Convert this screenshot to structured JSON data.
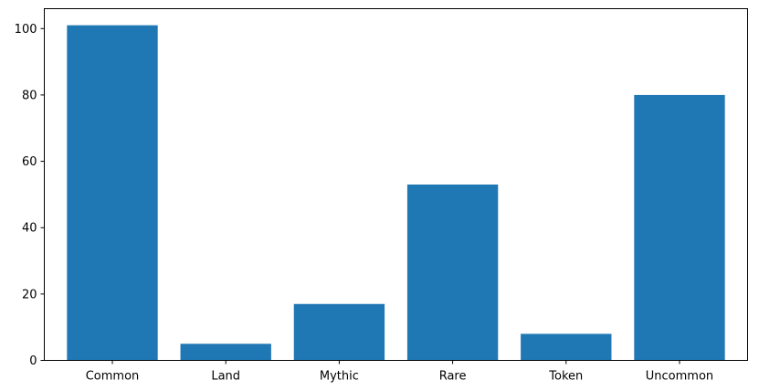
{
  "chart_data": {
    "type": "bar",
    "title": "",
    "xlabel": "",
    "ylabel": "",
    "categories": [
      "Common",
      "Land",
      "Mythic",
      "Rare",
      "Token",
      "Uncommon"
    ],
    "values": [
      101,
      5,
      17,
      53,
      8,
      80
    ],
    "ylim": [
      0,
      106
    ],
    "yticks": [
      0,
      20,
      40,
      60,
      80,
      100
    ],
    "grid": false,
    "bar_color": "#1f77b4"
  }
}
